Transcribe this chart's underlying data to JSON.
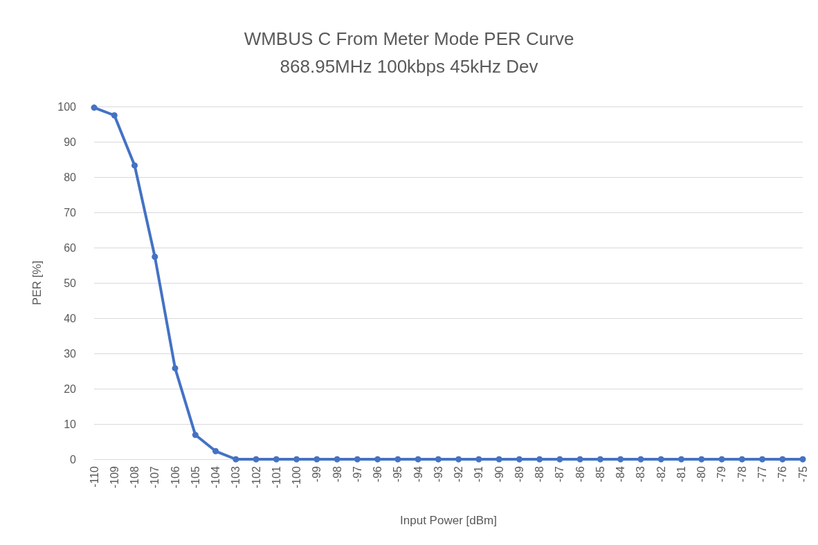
{
  "chart_data": {
    "type": "line",
    "title": "WMBUS C From Meter Mode PER Curve",
    "subtitle": "868.95MHz 100kbps 45kHz Dev",
    "xlabel": "Input Power [dBm]",
    "ylabel": "PER [%]",
    "categories": [
      "-110",
      "-109",
      "-108",
      "-107",
      "-106",
      "-105",
      "-104",
      "-103",
      "-102",
      "-101",
      "-100",
      "-99",
      "-98",
      "-97",
      "-96",
      "-95",
      "-94",
      "-93",
      "-92",
      "-91",
      "-90",
      "-89",
      "-88",
      "-87",
      "-86",
      "-85",
      "-84",
      "-83",
      "-82",
      "-81",
      "-80",
      "-79",
      "-78",
      "-77",
      "-76",
      "-75"
    ],
    "series": [
      {
        "color": "#4472c4",
        "values": [
          99.7,
          97.5,
          83.3,
          57.4,
          25.8,
          6.9,
          2.3,
          0,
          0,
          0,
          0,
          0,
          0,
          0,
          0,
          0,
          0,
          0,
          0,
          0,
          0,
          0,
          0,
          0,
          0,
          0,
          0,
          0,
          0,
          0,
          0,
          0,
          0,
          0,
          0,
          0
        ]
      }
    ],
    "ylim": [
      0,
      100
    ],
    "yticks": [
      0,
      10,
      20,
      30,
      40,
      50,
      60,
      70,
      80,
      90,
      100
    ],
    "grid": "y",
    "marker": "circle",
    "line_style": "solid"
  }
}
